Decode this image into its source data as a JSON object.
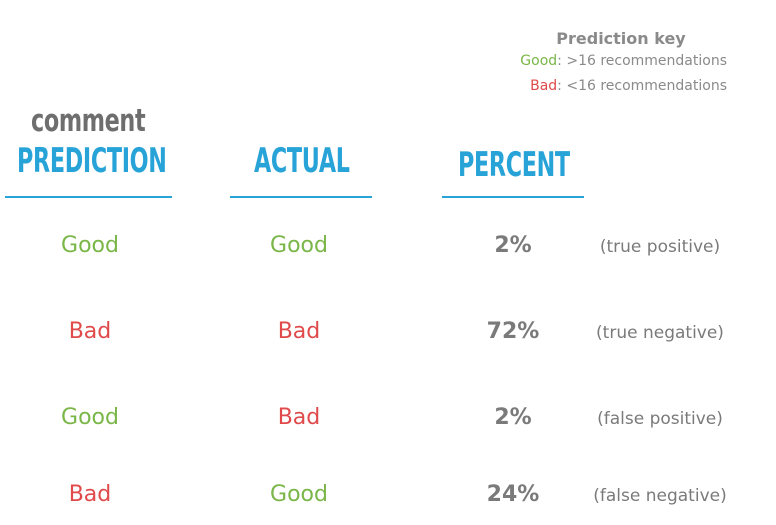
{
  "key": {
    "title": "Prediction key",
    "good_label": "Good",
    "good_text": ": >16 recommendations",
    "bad_label": "Bad",
    "bad_text": ": <16 recommendations"
  },
  "headers": {
    "comment": "comment",
    "prediction": "PREDICTION",
    "actual": "ACTUAL",
    "percent": "PERCENT"
  },
  "rows": [
    {
      "prediction": "Good",
      "actual": "Good",
      "percent": "2%",
      "description": "(true positive)"
    },
    {
      "prediction": "Bad",
      "actual": "Bad",
      "percent": "72%",
      "description": "(true negative)"
    },
    {
      "prediction": "Good",
      "actual": "Bad",
      "percent": "2%",
      "description": "(false positive)"
    },
    {
      "prediction": "Bad",
      "actual": "Good",
      "percent": "24%",
      "description": "(false negative)"
    }
  ],
  "colors": {
    "good": "#7ab648",
    "bad": "#e04a4a",
    "header": "#27a3d8",
    "muted": "#8a8a8a"
  }
}
